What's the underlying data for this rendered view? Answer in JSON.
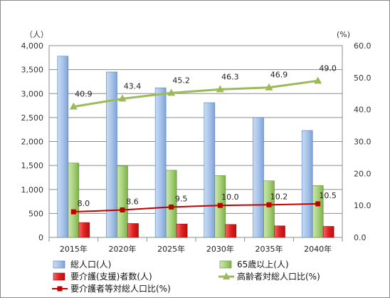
{
  "chart_data": {
    "type": "bar",
    "categories": [
      "2015年",
      "2020年",
      "2025年",
      "2030年",
      "2035年",
      "2040年"
    ],
    "y_left_unit": "（人）",
    "y_right_unit": "(%)",
    "y_left_ticks": [
      "0",
      "500",
      "1,000",
      "1,500",
      "2,000",
      "2,500",
      "3,000",
      "3,500",
      "4,000"
    ],
    "y_right_ticks": [
      "0.0",
      "10.0",
      "20.0",
      "30.0",
      "40.0",
      "50.0",
      "60.0"
    ],
    "ylim_left": [
      0,
      4000
    ],
    "ylim_right": [
      0,
      60
    ],
    "grid": true,
    "legend_position": "bottom",
    "series": [
      {
        "name": "総人口(人)",
        "kind": "bar",
        "axis": "left",
        "color": "#8fb3e3",
        "values": [
          3780,
          3450,
          3120,
          2810,
          2500,
          2230
        ]
      },
      {
        "name": "65歳以上(人)",
        "kind": "bar",
        "axis": "left",
        "color": "#9bc76a",
        "values": [
          1550,
          1490,
          1400,
          1290,
          1180,
          1080
        ]
      },
      {
        "name": "要介護(支援)者数(人)",
        "kind": "bar",
        "axis": "left",
        "color": "#e02020",
        "values": [
          310,
          290,
          280,
          270,
          240,
          230
        ]
      },
      {
        "name": "高齢者対総人口比(%)",
        "kind": "line",
        "axis": "right",
        "color": "#9bbb59",
        "marker": "triangle",
        "values": [
          40.9,
          43.4,
          45.2,
          46.3,
          46.9,
          49.0
        ],
        "labels": [
          "40.9",
          "43.4",
          "45.2",
          "46.3",
          "46.9",
          "49.0"
        ]
      },
      {
        "name": "要介護者等対総人口比(%)",
        "kind": "line",
        "axis": "right",
        "color": "#c00000",
        "marker": "square",
        "values": [
          8.0,
          8.6,
          9.5,
          10.0,
          10.2,
          10.5
        ],
        "labels": [
          "8.0",
          "8.6",
          "9.5",
          "10.0",
          "10.2",
          "10.5"
        ]
      }
    ]
  }
}
